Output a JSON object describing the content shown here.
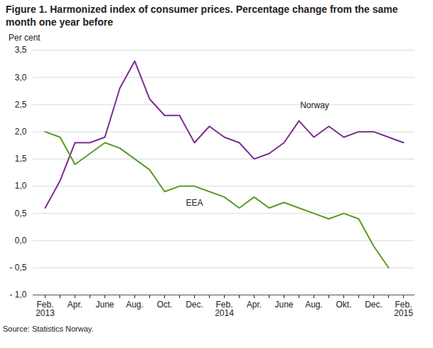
{
  "chart_data": {
    "type": "line",
    "title": "Figure 1. Harmonized index of consumer prices. Percentage change from the same month one year before",
    "ylabel": "Per cent",
    "source": "Source: Statistics Norway.",
    "categories": [
      "Feb.\n2013",
      null,
      "Apr.",
      null,
      "June",
      null,
      "Aug.",
      null,
      "Oct.",
      null,
      "Dec.",
      null,
      "Feb.\n2014",
      null,
      "Apr.",
      null,
      "June",
      null,
      "Aug.",
      null,
      "Okt.",
      null,
      "Dec.",
      null,
      "Feb.\n2015"
    ],
    "series": [
      {
        "name": "Norway",
        "color": "#7b2d8e",
        "values": [
          0.6,
          1.1,
          1.8,
          1.8,
          1.9,
          2.8,
          3.3,
          2.6,
          2.3,
          2.3,
          1.8,
          2.1,
          1.9,
          1.8,
          1.5,
          1.6,
          1.8,
          2.2,
          1.9,
          2.1,
          1.9,
          2.0,
          2.0,
          1.9,
          1.8
        ]
      },
      {
        "name": "EEA",
        "color": "#5b9b22",
        "values": [
          2.0,
          1.9,
          1.4,
          1.6,
          1.8,
          1.7,
          1.5,
          1.3,
          0.9,
          1.0,
          1.0,
          0.9,
          0.8,
          0.6,
          0.8,
          0.6,
          0.7,
          0.6,
          0.5,
          0.4,
          0.5,
          0.4,
          -0.1,
          -0.5,
          null
        ]
      }
    ],
    "ylim": [
      -1.0,
      3.5
    ],
    "yticks": [
      {
        "value": -1.0,
        "label": "- 1,0"
      },
      {
        "value": -0.5,
        "label": "- 0,5"
      },
      {
        "value": 0.0,
        "label": "0,0"
      },
      {
        "value": 0.5,
        "label": "0,5"
      },
      {
        "value": 1.0,
        "label": "1,0"
      },
      {
        "value": 1.5,
        "label": "1,5"
      },
      {
        "value": 2.0,
        "label": "2,0"
      },
      {
        "value": 2.5,
        "label": "2,5"
      },
      {
        "value": 3.0,
        "label": "3,0"
      },
      {
        "value": 3.5,
        "label": "3,5"
      }
    ],
    "grid": true
  }
}
